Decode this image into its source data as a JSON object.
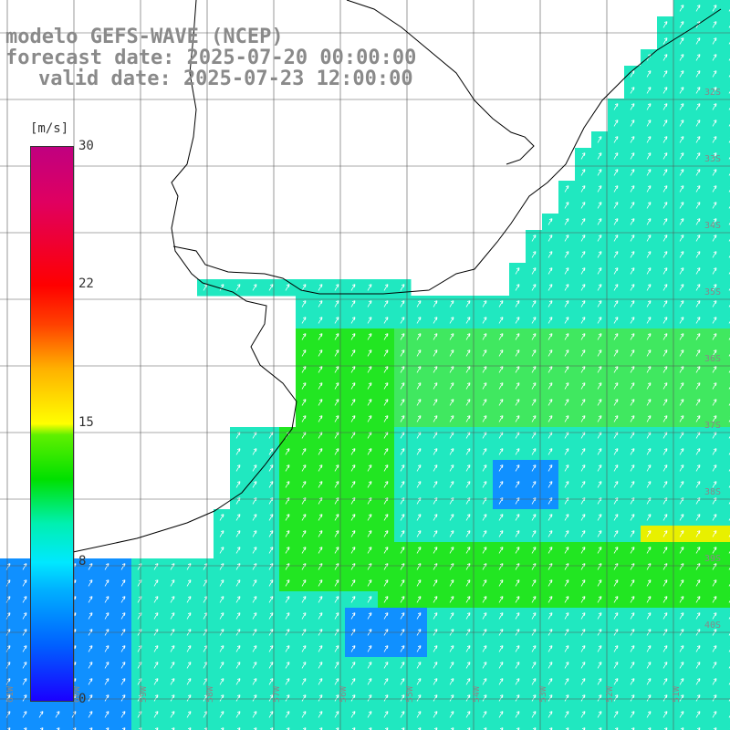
{
  "title": {
    "model": "modelo GEFS-WAVE (NCEP)",
    "forecast": "forecast date: 2025-07-20 00:00:00",
    "valid": "valid date: 2025-07-23 12:00:00"
  },
  "colorbar": {
    "unit": "[m/s]",
    "min": 0,
    "max": 30,
    "ticks": [
      "30",
      "22",
      "15",
      "8",
      "0"
    ]
  },
  "lat_labels": [
    "32S",
    "33S",
    "34S",
    "35S",
    "36S",
    "37S",
    "38S",
    "39S",
    "40S"
  ],
  "lon_labels": [
    "61W",
    "60W",
    "59W",
    "58W",
    "57W",
    "56W",
    "55W",
    "54W",
    "53W",
    "52W",
    "51W"
  ],
  "colors": {
    "land": "#ffffff",
    "grid": "#555555",
    "coast": "#000000",
    "arrows": "#ffffff"
  }
}
